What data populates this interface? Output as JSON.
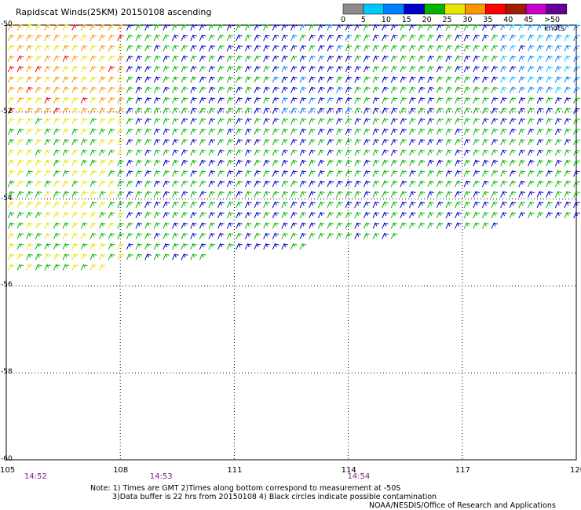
{
  "title": "Rapidscat Winds(25KM) 20150108 ascending",
  "legend": {
    "labels": [
      "0",
      "5",
      "10",
      "15",
      "20",
      "25",
      "30",
      "35",
      "40",
      "45",
      ">50 knots"
    ],
    "colors": [
      "#8c8c8c",
      "#00c8ff",
      "#0080ff",
      "#0000c8",
      "#00b400",
      "#e6e600",
      "#ff9600",
      "#ff0000",
      "#a01e00",
      "#c800c8",
      "#640096"
    ],
    "legend_ranges": [
      "0-5",
      "5-10",
      "10-15",
      "15-20",
      "20-25",
      "25-30",
      "30-35",
      "35-40",
      "40-45",
      "45-50",
      ">50"
    ]
  },
  "axes": {
    "x_ticks": [
      "105",
      "108",
      "111",
      "114",
      "117",
      "120"
    ],
    "y_ticks": [
      "-50",
      "-52",
      "-54",
      "-56",
      "-58",
      "-60"
    ],
    "time_labels": [
      "14:52",
      "14:53",
      "14:54"
    ]
  },
  "wind_field": {
    "lon_range": [
      105,
      120
    ],
    "lat_range": [
      -60,
      -50
    ],
    "swath_edge_lat_at_lon105": -55.8,
    "swath_edge_lat_at_lon117": -54.7,
    "dominant_direction": "westerly",
    "speed_regions": [
      {
        "lon": [
          105,
          108
        ],
        "lat": [
          -56,
          -52
        ],
        "speed_knots": 25
      },
      {
        "lon": [
          105,
          108.5
        ],
        "lat": [
          -52,
          -50
        ],
        "speed_knots": 32
      },
      {
        "lon": [
          108,
          114
        ],
        "lat": [
          -56,
          -50
        ],
        "speed_knots": 21
      },
      {
        "lon": [
          112,
          115
        ],
        "lat": [
          -52,
          -50
        ],
        "speed_knots": 17
      },
      {
        "lon": [
          114,
          120
        ],
        "lat": [
          -56,
          -50
        ],
        "speed_knots": 21
      },
      {
        "lon": [
          118,
          120
        ],
        "lat": [
          -51.7,
          -50
        ],
        "speed_knots": 12
      }
    ]
  },
  "notes": {
    "line1": "Note: 1) Times are GMT 2)Times along bottom correspond to measurement at -50S",
    "line2": "3)Data buffer is 22 hrs from 20150108 4) Black circles indicate possible contamination",
    "line3": "NOAA/NESDIS/Office of Research and Applications"
  }
}
